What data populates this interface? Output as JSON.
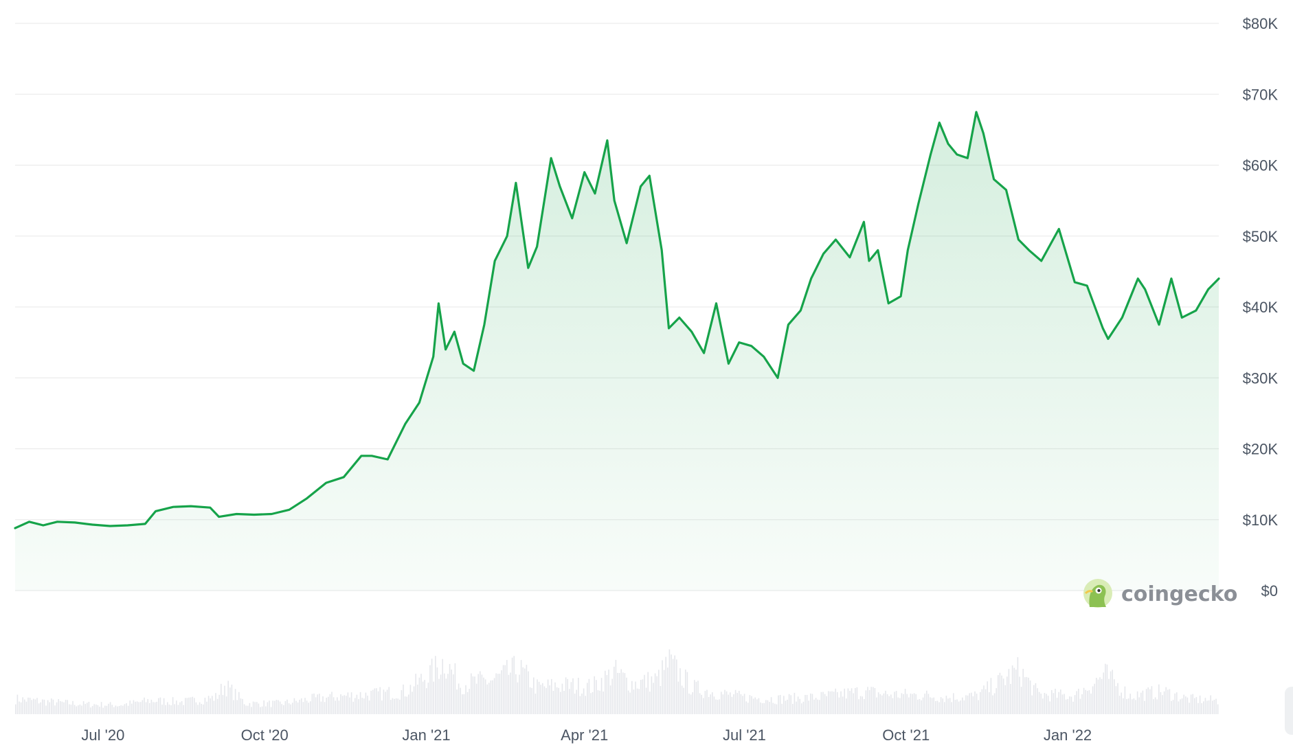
{
  "chart_data": {
    "type": "area",
    "title": "",
    "xlabel": "",
    "ylabel": "",
    "ylim": [
      0,
      80000
    ],
    "grid": true,
    "y_axis_side": "right",
    "y_tick_values": [
      0,
      10000,
      20000,
      30000,
      40000,
      50000,
      60000,
      70000,
      80000
    ],
    "y_tick_labels": [
      "$0",
      "$10K",
      "$20K",
      "$30K",
      "$40K",
      "$50K",
      "$60K",
      "$70K",
      "$80K"
    ],
    "x_ticks": [
      {
        "date": "2020-07-01",
        "label": "Jul '20"
      },
      {
        "date": "2020-10-01",
        "label": "Oct '20"
      },
      {
        "date": "2021-01-01",
        "label": "Jan '21"
      },
      {
        "date": "2021-04-01",
        "label": "Apr '21"
      },
      {
        "date": "2021-07-01",
        "label": "Jul '21"
      },
      {
        "date": "2021-10-01",
        "label": "Oct '21"
      },
      {
        "date": "2022-01-01",
        "label": "Jan '22"
      }
    ],
    "x_range": [
      "2020-05-12",
      "2022-03-28"
    ],
    "colors": {
      "line": "#16a34a",
      "fill": "#16a34a",
      "volume": "#e5e7eb",
      "grid": "#ececec",
      "tick_text": "#4b5563"
    },
    "series": [
      {
        "values": [
          [
            "2020-05-12",
            8800
          ],
          [
            "2020-05-20",
            9700
          ],
          [
            "2020-05-28",
            9200
          ],
          [
            "2020-06-05",
            9700
          ],
          [
            "2020-06-15",
            9600
          ],
          [
            "2020-06-25",
            9300
          ],
          [
            "2020-07-05",
            9100
          ],
          [
            "2020-07-15",
            9200
          ],
          [
            "2020-07-25",
            9400
          ],
          [
            "2020-07-31",
            11200
          ],
          [
            "2020-08-10",
            11800
          ],
          [
            "2020-08-20",
            11900
          ],
          [
            "2020-08-31",
            11700
          ],
          [
            "2020-09-05",
            10400
          ],
          [
            "2020-09-15",
            10800
          ],
          [
            "2020-09-25",
            10700
          ],
          [
            "2020-10-05",
            10800
          ],
          [
            "2020-10-15",
            11400
          ],
          [
            "2020-10-25",
            13000
          ],
          [
            "2020-11-05",
            15200
          ],
          [
            "2020-11-15",
            16000
          ],
          [
            "2020-11-25",
            19000
          ],
          [
            "2020-12-01",
            19000
          ],
          [
            "2020-12-10",
            18500
          ],
          [
            "2020-12-20",
            23500
          ],
          [
            "2020-12-28",
            26500
          ],
          [
            "2021-01-05",
            33000
          ],
          [
            "2021-01-08",
            40500
          ],
          [
            "2021-01-12",
            34000
          ],
          [
            "2021-01-17",
            36500
          ],
          [
            "2021-01-22",
            32000
          ],
          [
            "2021-01-28",
            31000
          ],
          [
            "2021-02-03",
            37500
          ],
          [
            "2021-02-09",
            46500
          ],
          [
            "2021-02-16",
            50000
          ],
          [
            "2021-02-21",
            57500
          ],
          [
            "2021-02-28",
            45500
          ],
          [
            "2021-03-05",
            48500
          ],
          [
            "2021-03-13",
            61000
          ],
          [
            "2021-03-18",
            57000
          ],
          [
            "2021-03-25",
            52500
          ],
          [
            "2021-04-01",
            59000
          ],
          [
            "2021-04-07",
            56000
          ],
          [
            "2021-04-14",
            63500
          ],
          [
            "2021-04-18",
            55000
          ],
          [
            "2021-04-25",
            49000
          ],
          [
            "2021-05-03",
            57000
          ],
          [
            "2021-05-08",
            58500
          ],
          [
            "2021-05-15",
            48000
          ],
          [
            "2021-05-19",
            37000
          ],
          [
            "2021-05-25",
            38500
          ],
          [
            "2021-06-01",
            36500
          ],
          [
            "2021-06-08",
            33500
          ],
          [
            "2021-06-15",
            40500
          ],
          [
            "2021-06-22",
            32000
          ],
          [
            "2021-06-28",
            35000
          ],
          [
            "2021-07-05",
            34500
          ],
          [
            "2021-07-12",
            33000
          ],
          [
            "2021-07-20",
            30000
          ],
          [
            "2021-07-26",
            37500
          ],
          [
            "2021-08-02",
            39500
          ],
          [
            "2021-08-08",
            44000
          ],
          [
            "2021-08-15",
            47500
          ],
          [
            "2021-08-22",
            49500
          ],
          [
            "2021-08-30",
            47000
          ],
          [
            "2021-09-07",
            52000
          ],
          [
            "2021-09-10",
            46500
          ],
          [
            "2021-09-15",
            48000
          ],
          [
            "2021-09-21",
            40500
          ],
          [
            "2021-09-28",
            41500
          ],
          [
            "2021-10-02",
            48000
          ],
          [
            "2021-10-08",
            54500
          ],
          [
            "2021-10-15",
            61500
          ],
          [
            "2021-10-20",
            66000
          ],
          [
            "2021-10-25",
            63000
          ],
          [
            "2021-10-30",
            61500
          ],
          [
            "2021-11-05",
            61000
          ],
          [
            "2021-11-10",
            67500
          ],
          [
            "2021-11-14",
            64500
          ],
          [
            "2021-11-20",
            58000
          ],
          [
            "2021-11-27",
            56500
          ],
          [
            "2021-12-04",
            49500
          ],
          [
            "2021-12-10",
            48000
          ],
          [
            "2021-12-17",
            46500
          ],
          [
            "2021-12-27",
            51000
          ],
          [
            "2022-01-05",
            43500
          ],
          [
            "2022-01-12",
            43000
          ],
          [
            "2022-01-21",
            37000
          ],
          [
            "2022-01-24",
            35500
          ],
          [
            "2022-02-01",
            38500
          ],
          [
            "2022-02-10",
            44000
          ],
          [
            "2022-02-14",
            42500
          ],
          [
            "2022-02-22",
            37500
          ],
          [
            "2022-03-01",
            44000
          ],
          [
            "2022-03-07",
            38500
          ],
          [
            "2022-03-15",
            39500
          ],
          [
            "2022-03-22",
            42500
          ],
          [
            "2022-03-28",
            44000
          ]
        ]
      }
    ],
    "volume": {
      "shown": true,
      "units": "relative",
      "values": [
        [
          "2020-05-12",
          0.2
        ],
        [
          "2020-06-01",
          0.16
        ],
        [
          "2020-06-20",
          0.13
        ],
        [
          "2020-07-10",
          0.12
        ],
        [
          "2020-07-28",
          0.18
        ],
        [
          "2020-08-15",
          0.16
        ],
        [
          "2020-09-03",
          0.22
        ],
        [
          "2020-09-08",
          0.38
        ],
        [
          "2020-09-20",
          0.14
        ],
        [
          "2020-10-10",
          0.14
        ],
        [
          "2020-10-28",
          0.2
        ],
        [
          "2020-11-15",
          0.24
        ],
        [
          "2020-12-01",
          0.26
        ],
        [
          "2020-12-20",
          0.3
        ],
        [
          "2021-01-04",
          0.55
        ],
        [
          "2021-01-11",
          0.7
        ],
        [
          "2021-01-20",
          0.4
        ],
        [
          "2021-01-29",
          0.42
        ],
        [
          "2021-02-08",
          0.45
        ],
        [
          "2021-02-22",
          0.6
        ],
        [
          "2021-03-05",
          0.35
        ],
        [
          "2021-03-20",
          0.38
        ],
        [
          "2021-04-05",
          0.36
        ],
        [
          "2021-04-18",
          0.55
        ],
        [
          "2021-04-28",
          0.4
        ],
        [
          "2021-05-12",
          0.45
        ],
        [
          "2021-05-19",
          0.68
        ],
        [
          "2021-06-01",
          0.35
        ],
        [
          "2021-06-15",
          0.28
        ],
        [
          "2021-07-01",
          0.22
        ],
        [
          "2021-07-20",
          0.2
        ],
        [
          "2021-08-10",
          0.22
        ],
        [
          "2021-09-07",
          0.3
        ],
        [
          "2021-09-20",
          0.26
        ],
        [
          "2021-10-10",
          0.25
        ],
        [
          "2021-10-25",
          0.22
        ],
        [
          "2021-11-10",
          0.24
        ],
        [
          "2021-12-04",
          0.58
        ],
        [
          "2021-12-15",
          0.26
        ],
        [
          "2022-01-05",
          0.24
        ],
        [
          "2022-01-22",
          0.52
        ],
        [
          "2022-02-05",
          0.24
        ],
        [
          "2022-02-24",
          0.3
        ],
        [
          "2022-03-10",
          0.2
        ],
        [
          "2022-03-28",
          0.18
        ]
      ]
    }
  },
  "watermark": {
    "text": "coingecko",
    "icon": "gecko-icon"
  }
}
